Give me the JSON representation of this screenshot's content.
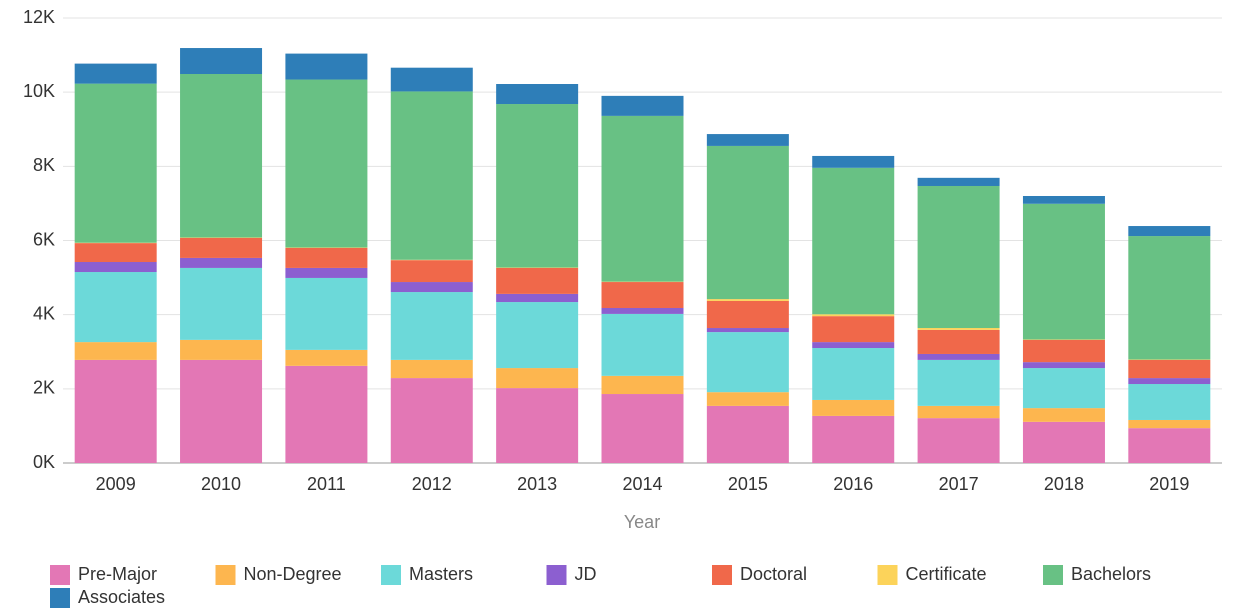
{
  "chart_data": {
    "type": "stacked_bar",
    "x_label": "Year",
    "categories": [
      "2009",
      "2010",
      "2011",
      "2012",
      "2013",
      "2014",
      "2015",
      "2016",
      "2017",
      "2018",
      "2019"
    ],
    "series": [
      {
        "name": "Pre-Major",
        "color": "#e377b5",
        "values": [
          2780,
          2780,
          2620,
          2290,
          2020,
          1860,
          1540,
          1270,
          1210,
          1110,
          940
        ]
      },
      {
        "name": "Non-Degree",
        "color": "#fdb64f",
        "values": [
          480,
          540,
          430,
          490,
          540,
          490,
          370,
          430,
          330,
          370,
          220
        ]
      },
      {
        "name": "Masters",
        "color": "#6cd9d9",
        "values": [
          1890,
          1940,
          1940,
          1830,
          1780,
          1670,
          1620,
          1400,
          1240,
          1080,
          970
        ]
      },
      {
        "name": "JD",
        "color": "#8c5fd0",
        "values": [
          270,
          270,
          270,
          270,
          220,
          160,
          110,
          160,
          160,
          160,
          160
        ]
      },
      {
        "name": "Doctoral",
        "color": "#f0684a",
        "values": [
          510,
          540,
          540,
          590,
          700,
          700,
          730,
          700,
          650,
          600,
          490
        ]
      },
      {
        "name": "Certificate",
        "color": "#fcd35a",
        "values": [
          10,
          10,
          10,
          10,
          10,
          10,
          50,
          50,
          50,
          10,
          10
        ]
      },
      {
        "name": "Bachelors",
        "color": "#68c184",
        "values": [
          4290,
          4410,
          4530,
          4540,
          4410,
          4470,
          4130,
          3950,
          3830,
          3660,
          3330
        ]
      },
      {
        "name": "Associates",
        "color": "#2e7eb8",
        "values": [
          540,
          700,
          700,
          640,
          540,
          540,
          320,
          320,
          220,
          210,
          270
        ]
      }
    ],
    "ylim": [
      0,
      12000
    ],
    "yticks": [
      {
        "value": 0,
        "label": "0K"
      },
      {
        "value": 2000,
        "label": "2K"
      },
      {
        "value": 4000,
        "label": "4K"
      },
      {
        "value": 6000,
        "label": "6K"
      },
      {
        "value": 8000,
        "label": "8K"
      },
      {
        "value": 10000,
        "label": "10K"
      },
      {
        "value": 12000,
        "label": "12K"
      }
    ],
    "grid": true
  }
}
